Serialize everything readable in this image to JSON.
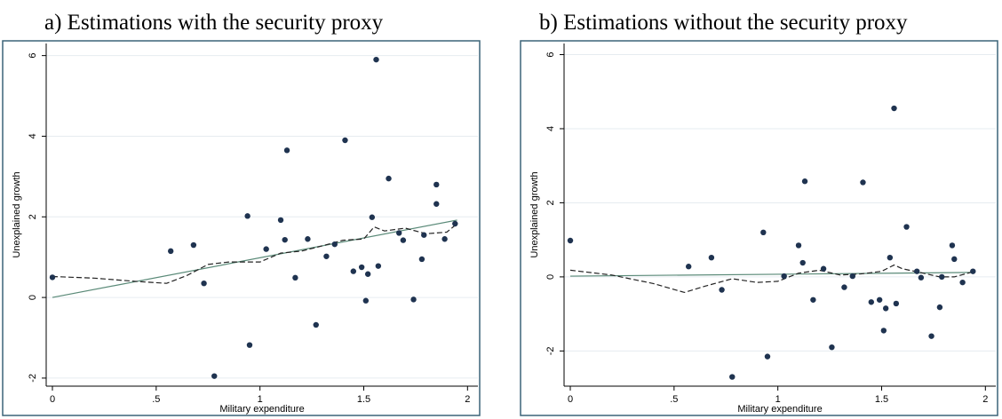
{
  "chart_data": [
    {
      "type": "scatter",
      "title": "a) Estimations with the security proxy",
      "xlabel": "Military expenditure",
      "ylabel": "Unexplained growth",
      "xlim": [
        -0.03,
        2.05
      ],
      "ylim": [
        -2.2,
        6.3
      ],
      "xticks": [
        0,
        0.5,
        1,
        1.5,
        2
      ],
      "xtick_labels": [
        "0",
        ".5",
        "1",
        "1.5",
        "2"
      ],
      "yticks": [
        -2,
        0,
        2,
        4,
        6
      ],
      "ytick_labels": [
        "-2",
        "0",
        "2",
        "4",
        "6"
      ],
      "grid": "horizontal",
      "colors": {
        "points": "#1f3350",
        "fit": "#5a8a78",
        "smooth": "#222222",
        "grid": "#e6ecf0",
        "frame": "#3b6378"
      },
      "series": [
        {
          "kind": "points",
          "x": [
            0,
            0.57,
            0.68,
            0.73,
            0.78,
            0.94,
            0.95,
            1.03,
            1.1,
            1.12,
            1.13,
            1.17,
            1.23,
            1.27,
            1.32,
            1.36,
            1.41,
            1.45,
            1.49,
            1.51,
            1.52,
            1.54,
            1.56,
            1.57,
            1.62,
            1.67,
            1.69,
            1.74,
            1.78,
            1.79,
            1.85,
            1.85,
            1.89,
            1.94
          ],
          "y": [
            0.5,
            1.15,
            1.3,
            0.35,
            -1.95,
            2.02,
            -1.18,
            1.2,
            1.92,
            1.43,
            3.65,
            0.49,
            1.45,
            -0.68,
            1.02,
            1.32,
            3.9,
            0.65,
            0.75,
            -0.08,
            0.58,
            1.99,
            5.9,
            0.78,
            2.95,
            1.6,
            1.42,
            -0.05,
            0.95,
            1.55,
            2.8,
            2.32,
            1.45,
            1.83
          ]
        },
        {
          "kind": "linear-fit",
          "x": [
            0,
            1.95
          ],
          "y": [
            0,
            1.92
          ]
        },
        {
          "kind": "smooth",
          "x": [
            0,
            0.2,
            0.4,
            0.55,
            0.65,
            0.75,
            0.85,
            1,
            1.1,
            1.2,
            1.3,
            1.4,
            1.5,
            1.55,
            1.6,
            1.7,
            1.8,
            1.9,
            1.95
          ],
          "y": [
            0.52,
            0.48,
            0.4,
            0.35,
            0.55,
            0.82,
            0.88,
            0.88,
            1.1,
            1.15,
            1.28,
            1.42,
            1.45,
            1.75,
            1.65,
            1.72,
            1.58,
            1.62,
            1.83
          ]
        }
      ]
    },
    {
      "type": "scatter",
      "title": "b) Estimations without the security proxy",
      "xlabel": "Military expenditure",
      "ylabel": "Unexplained growth",
      "xlim": [
        -0.03,
        2.05
      ],
      "ylim": [
        -2.95,
        6.3
      ],
      "xticks": [
        0,
        0.5,
        1,
        1.5,
        2
      ],
      "xtick_labels": [
        "0",
        ".5",
        "1",
        "1.5",
        "2"
      ],
      "yticks": [
        -2,
        0,
        2,
        4,
        6
      ],
      "ytick_labels": [
        "-2",
        "0",
        "2",
        "4",
        "6"
      ],
      "grid": "horizontal",
      "colors": {
        "points": "#1f3350",
        "fit": "#5a8a78",
        "smooth": "#222222",
        "grid": "#e6ecf0",
        "frame": "#3b6378"
      },
      "series": [
        {
          "kind": "points",
          "x": [
            0,
            0.57,
            0.68,
            0.73,
            0.78,
            0.93,
            0.95,
            1.03,
            1.1,
            1.12,
            1.13,
            1.17,
            1.22,
            1.26,
            1.32,
            1.36,
            1.41,
            1.45,
            1.49,
            1.51,
            1.52,
            1.54,
            1.56,
            1.57,
            1.62,
            1.67,
            1.69,
            1.74,
            1.78,
            1.79,
            1.84,
            1.85,
            1.89,
            1.94
          ],
          "y": [
            0.98,
            0.28,
            0.52,
            -0.35,
            -2.7,
            1.2,
            -2.15,
            0.02,
            0.85,
            0.38,
            2.58,
            -0.62,
            0.22,
            -1.9,
            -0.28,
            0.02,
            2.55,
            -0.68,
            -0.62,
            -1.45,
            -0.85,
            0.52,
            4.55,
            -0.72,
            1.35,
            0.15,
            -0.02,
            -1.6,
            -0.82,
            0.0,
            0.85,
            0.48,
            -0.15,
            0.15
          ]
        },
        {
          "kind": "linear-fit",
          "x": [
            0,
            1.95
          ],
          "y": [
            0.02,
            0.12
          ]
        },
        {
          "kind": "smooth",
          "x": [
            0,
            0.2,
            0.4,
            0.55,
            0.65,
            0.78,
            0.9,
            1,
            1.1,
            1.2,
            1.3,
            1.4,
            1.5,
            1.56,
            1.6,
            1.7,
            1.78,
            1.85,
            1.95
          ],
          "y": [
            0.18,
            0.05,
            -0.18,
            -0.42,
            -0.25,
            -0.05,
            -0.15,
            -0.12,
            0.1,
            0.18,
            0.05,
            0.08,
            0.15,
            0.32,
            0.22,
            0.1,
            0.0,
            0.0,
            0.15
          ]
        }
      ]
    }
  ]
}
